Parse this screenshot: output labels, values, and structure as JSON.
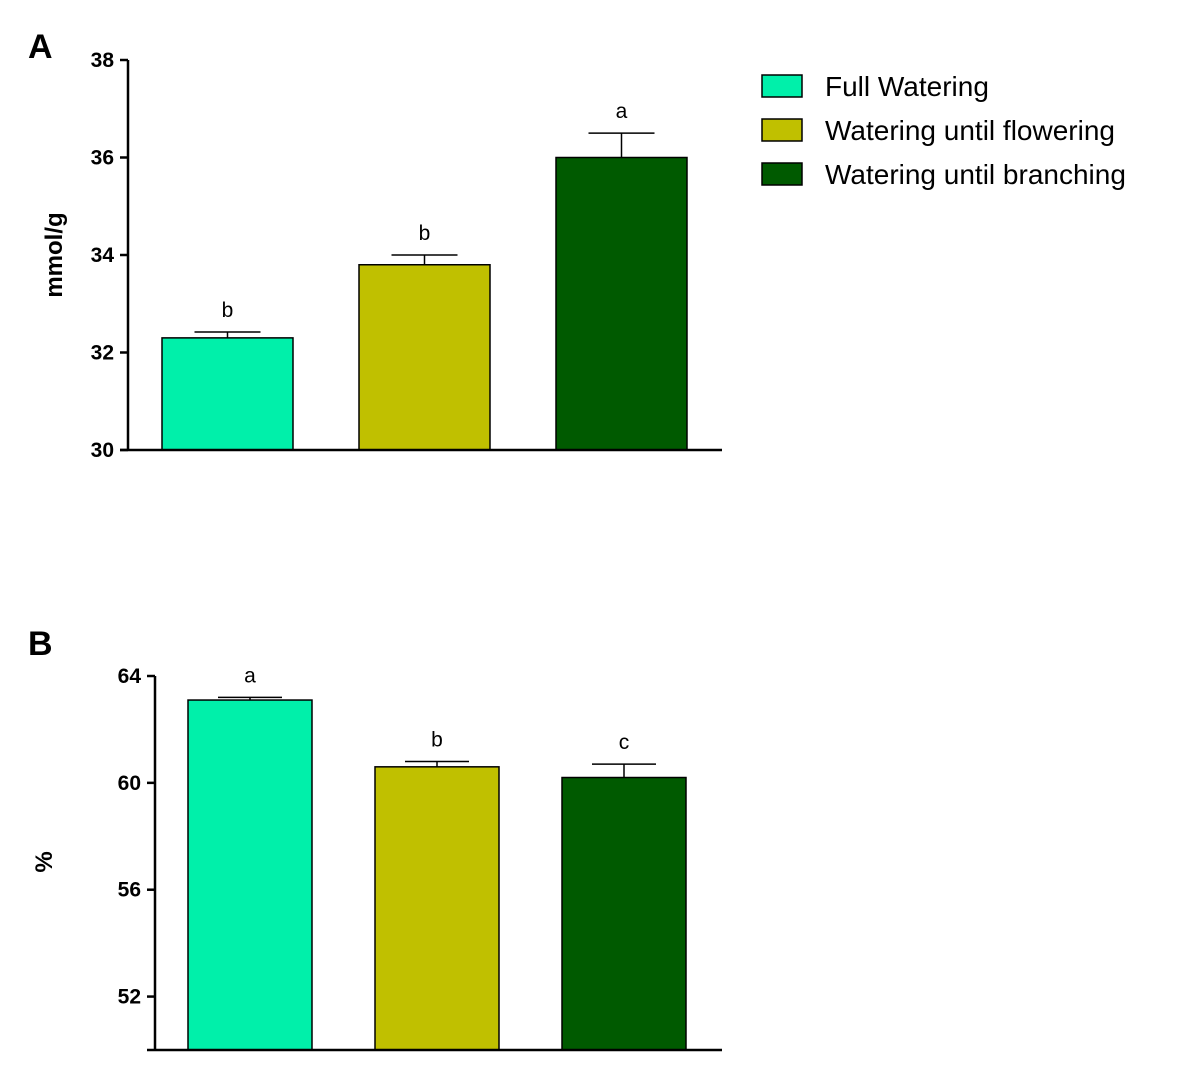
{
  "legend": {
    "items": [
      {
        "label": "Full Watering",
        "color": "#00F0AA"
      },
      {
        "label": "Watering until flowering",
        "color": "#C0C000"
      },
      {
        "label": "Watering until branching",
        "color": "#005A00"
      }
    ]
  },
  "chart_data": [
    {
      "type": "bar",
      "panel": "A",
      "categories": [
        "Full Watering",
        "Watering until flowering",
        "Watering until branching"
      ],
      "values": [
        32.3,
        33.8,
        36.0
      ],
      "errors": [
        0.12,
        0.2,
        0.5
      ],
      "significance": [
        "b",
        "b",
        "a"
      ],
      "ylabel": "mmol/g",
      "xlabel": "",
      "ylim": [
        30,
        38
      ],
      "yticks": [
        30,
        32,
        34,
        36,
        38
      ]
    },
    {
      "type": "bar",
      "panel": "B",
      "categories": [
        "Full Watering",
        "Watering until flowering",
        "Watering until branching"
      ],
      "values": [
        63.1,
        60.6,
        60.2
      ],
      "errors": [
        0.1,
        0.2,
        0.5
      ],
      "significance": [
        "a",
        "b",
        "c"
      ],
      "ylabel": "%",
      "xlabel": "",
      "ylim": [
        50,
        64
      ],
      "yticks": [
        52,
        56,
        60,
        64
      ]
    }
  ]
}
